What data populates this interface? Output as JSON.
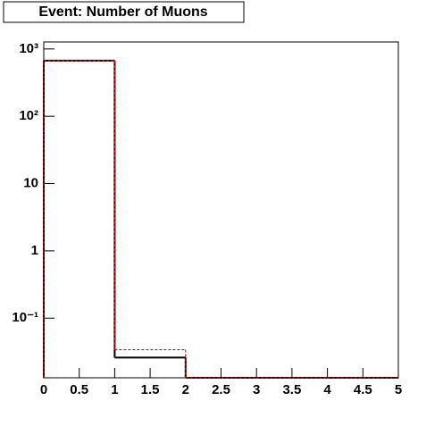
{
  "chart_data": {
    "type": "histogram",
    "title": "Event: Number of Muons",
    "bins": [
      0,
      1,
      2,
      3,
      4,
      5
    ],
    "series": [
      {
        "color": "#000000",
        "values": [
          670,
          0.026,
          0,
          0,
          0
        ]
      },
      {
        "color": "#ff0000",
        "values": [
          670,
          0.034,
          0,
          0,
          0
        ]
      }
    ],
    "xlim": [
      0,
      5
    ],
    "xticks": [
      0,
      0.5,
      1,
      1.5,
      2,
      2.5,
      3,
      3.5,
      4,
      4.5,
      5
    ],
    "ylim": [
      0.013,
      1270
    ],
    "log_y": true,
    "yticks": [
      {
        "value": 0.1,
        "label": "10⁻¹"
      },
      1,
      10,
      {
        "value": 100,
        "label": "10²"
      },
      {
        "value": 1000,
        "label": "10³"
      }
    ]
  }
}
